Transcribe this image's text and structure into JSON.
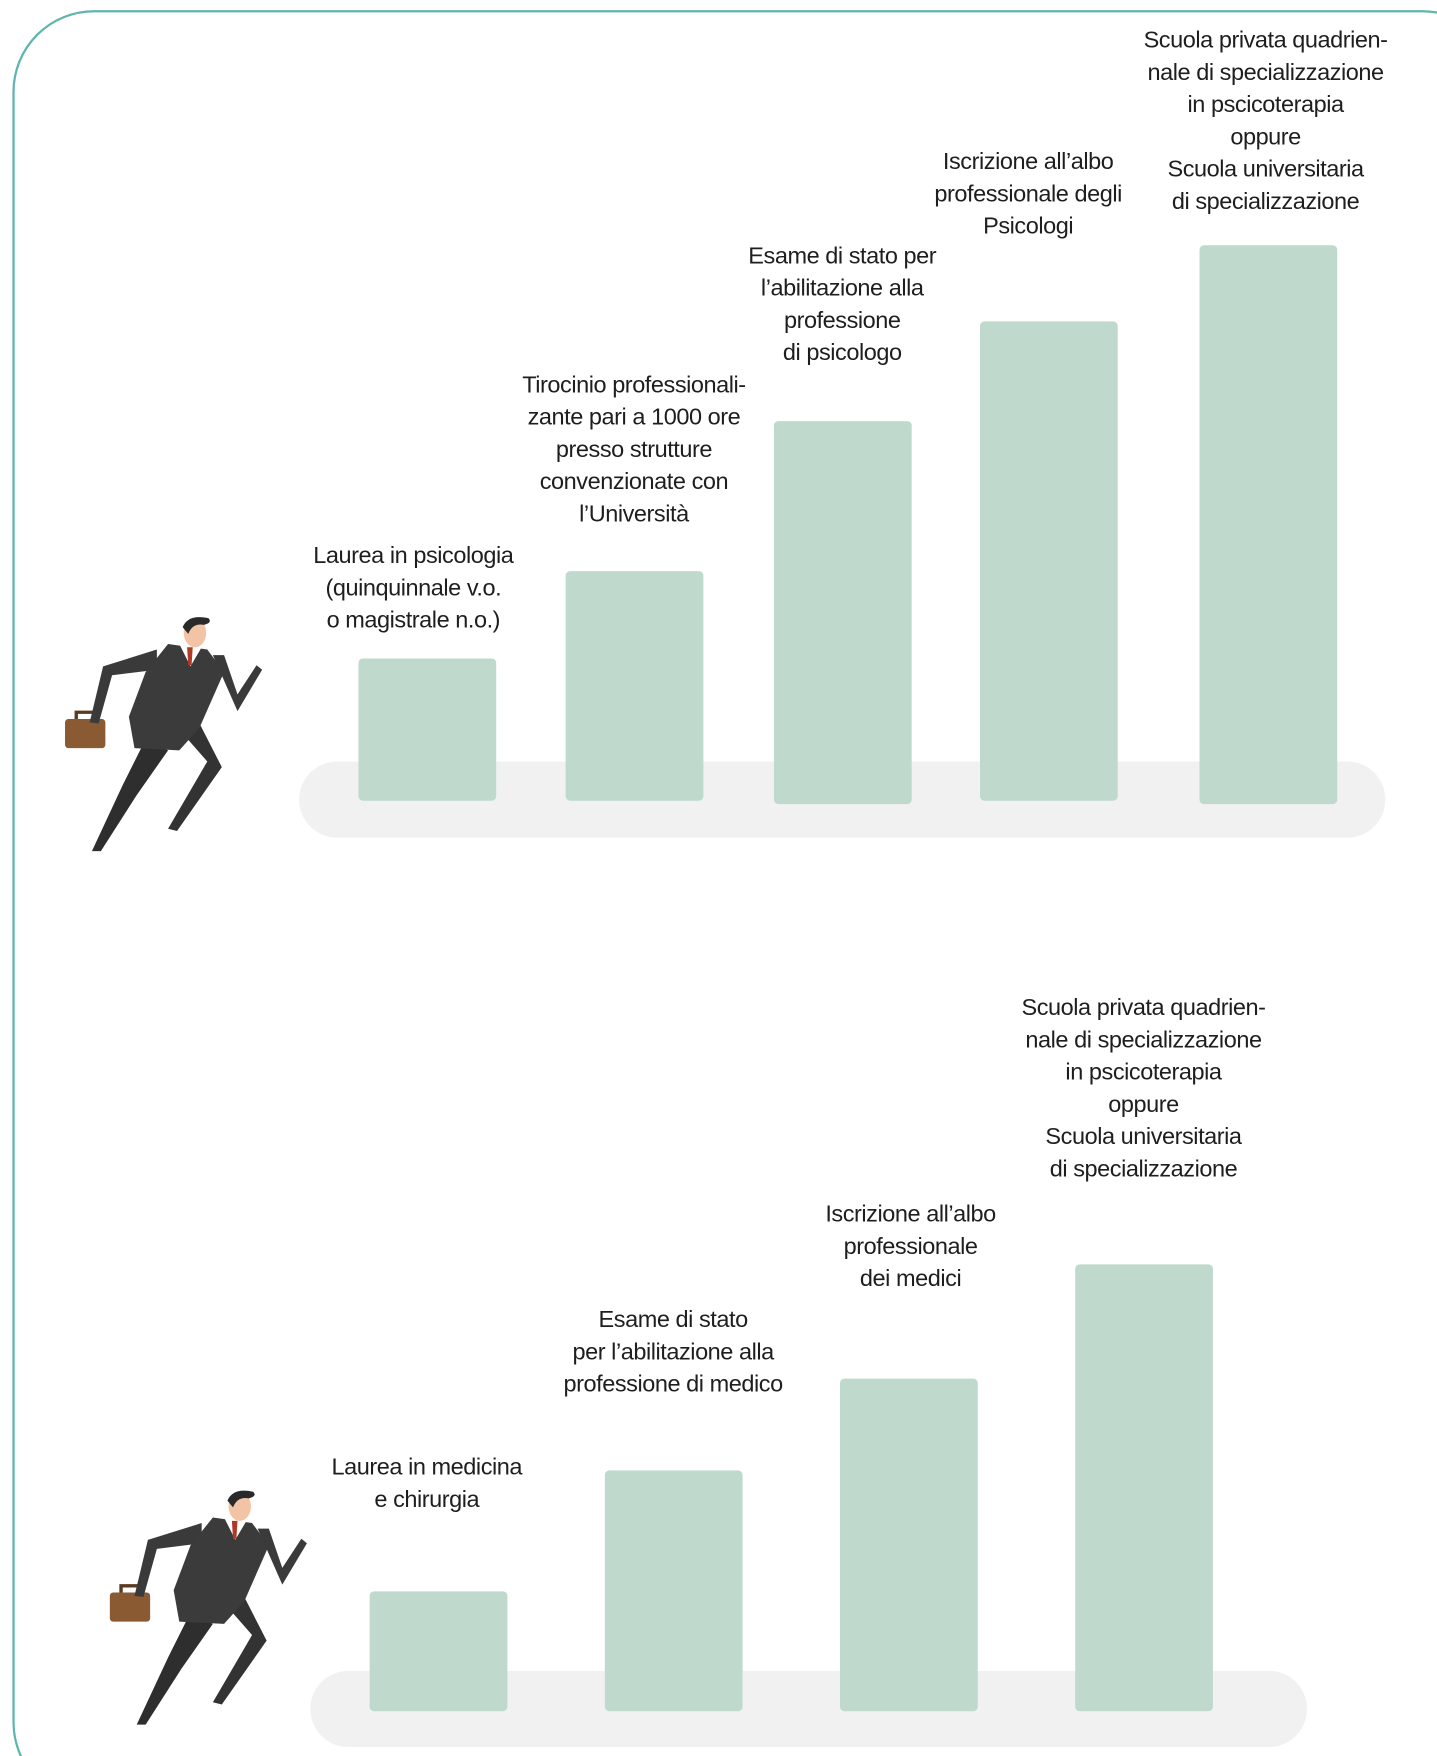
{
  "paths": [
    {
      "steps": [
        {
          "lines": [
            "Laurea in psicologia",
            "(quinquinnale v.o.",
            "o magistrale n.o.)"
          ]
        },
        {
          "lines": [
            "Tirocinio professionali-",
            "zante pari a 1000 ore",
            "presso strutture",
            "convenzionate con",
            "l’Università"
          ]
        },
        {
          "lines": [
            "Esame di stato per",
            "l’abilitazione alla",
            "professione",
            "di psicologo"
          ]
        },
        {
          "lines": [
            "Iscrizione all’albo",
            "professionale degli",
            "Psicologi"
          ]
        },
        {
          "lines": [
            "Scuola privata quadrien-",
            "nale di specializzazione",
            "in pscicoterapia",
            "oppure",
            "Scuola universitaria",
            "di specializzazione"
          ]
        }
      ]
    },
    {
      "steps": [
        {
          "lines": [
            "Laurea in medicina",
            "e chirurgia"
          ]
        },
        {
          "lines": [
            "Esame di stato",
            "per l’abilitazione alla",
            "professione di medico"
          ]
        },
        {
          "lines": [
            "Iscrizione all’albo",
            "professionale",
            "dei medici"
          ]
        },
        {
          "lines": [
            "Scuola privata quadrien-",
            "nale di specializzazione",
            "in pscicoterapia",
            "oppure",
            "Scuola universitaria",
            "di specializzazione"
          ]
        }
      ]
    }
  ]
}
